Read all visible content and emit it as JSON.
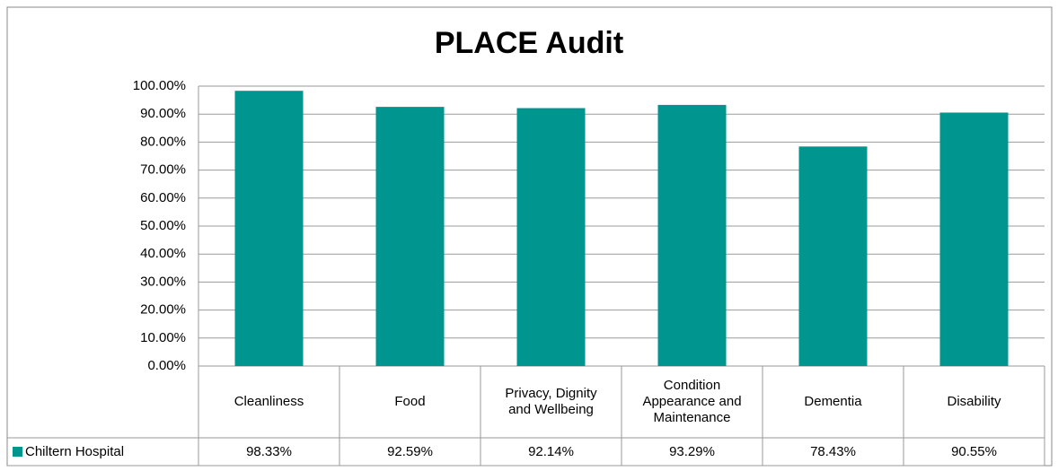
{
  "chart_data": {
    "type": "bar",
    "title": "PLACE Audit",
    "categories": [
      "Cleanliness",
      "Food",
      "Privacy, Dignity and Wellbeing",
      "Condition Appearance and Maintenance",
      "Dementia",
      "Disability"
    ],
    "series": [
      {
        "name": "Chiltern Hospital",
        "color": "#00968f",
        "values": [
          98.33,
          92.59,
          92.14,
          93.29,
          78.43,
          90.55
        ],
        "value_labels": [
          "98.33%",
          "92.59%",
          "92.14%",
          "93.29%",
          "78.43%",
          "90.55%"
        ]
      }
    ],
    "ylim": [
      0,
      100
    ],
    "yticks": [
      {
        "value": 0,
        "label": "0.00%"
      },
      {
        "value": 10,
        "label": "10.00%"
      },
      {
        "value": 20,
        "label": "20.00%"
      },
      {
        "value": 30,
        "label": "30.00%"
      },
      {
        "value": 40,
        "label": "40.00%"
      },
      {
        "value": 50,
        "label": "50.00%"
      },
      {
        "value": 60,
        "label": "60.00%"
      },
      {
        "value": 70,
        "label": "70.00%"
      },
      {
        "value": 80,
        "label": "80.00%"
      },
      {
        "value": 90,
        "label": "90.00%"
      },
      {
        "value": 100,
        "label": "100.00%"
      }
    ],
    "grid": true
  }
}
